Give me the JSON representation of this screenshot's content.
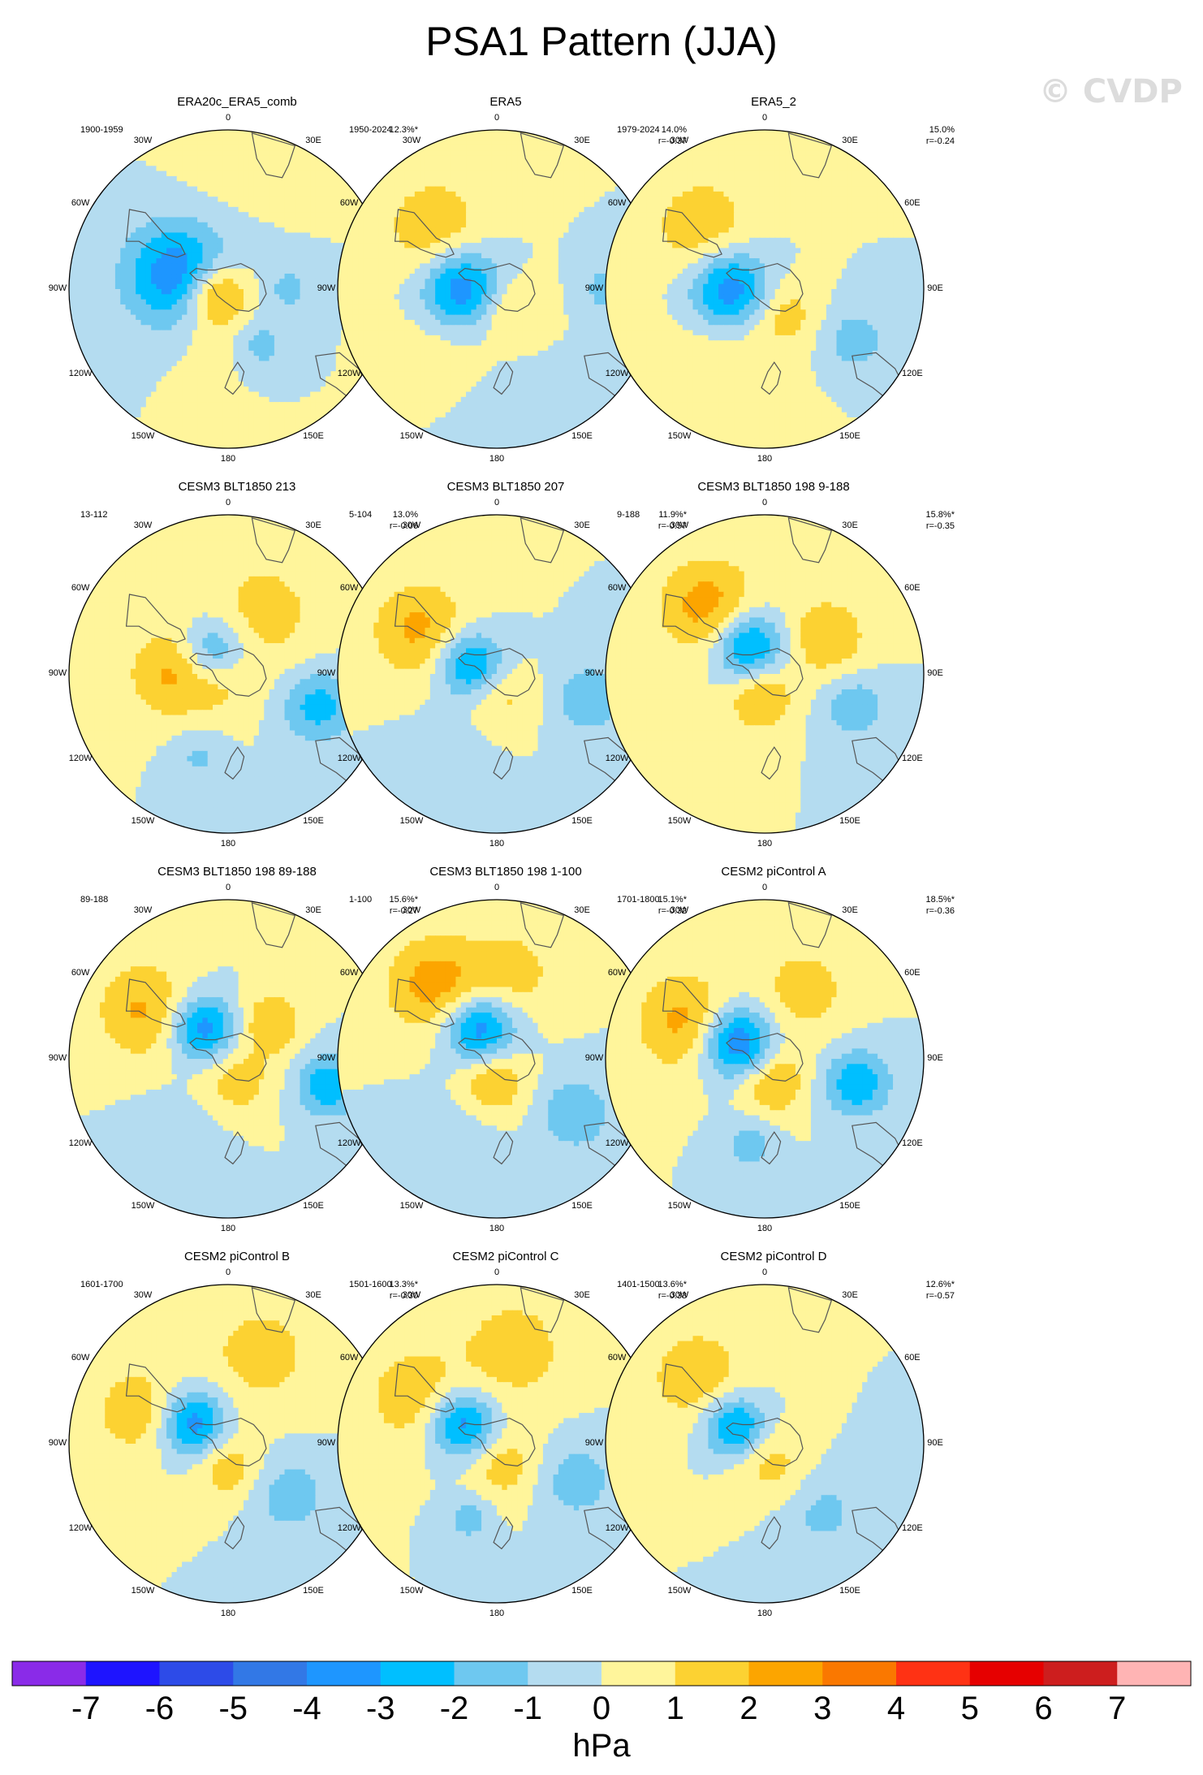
{
  "title": "PSA1 Pattern (JJA)",
  "copyright": "© CVDP",
  "unit": "hPa",
  "lon_labels": {
    "top": "0",
    "bottom": "180",
    "l30": "30W",
    "r30": "30E",
    "l60": "60W",
    "r60": "60E",
    "l90": "90W",
    "r90": "90E",
    "l120": "120W",
    "r120": "120E",
    "l150": "150W",
    "r150": "150E"
  },
  "colors": {
    "ocean_neg0": "#b4dcf0",
    "coast": "#555555"
  },
  "chart_data": {
    "type": "polar_contour_map",
    "projection": "south polar stereographic",
    "variable": "PSA1 sea level pressure anomaly (JJA)",
    "colorbar": {
      "levels": [
        "-7",
        "-6",
        "-5",
        "-4",
        "-3",
        "-2",
        "-1",
        "0",
        "1",
        "2",
        "3",
        "4",
        "5",
        "6",
        "7"
      ],
      "colors": [
        "#8a2be8",
        "#1e14ff",
        "#2d4be8",
        "#3278e6",
        "#1e96ff",
        "#00bfff",
        "#6ec8f0",
        "#b4dcf0",
        "#fff59b",
        "#fcd232",
        "#fca500",
        "#fa7800",
        "#ff3214",
        "#e60000",
        "#cd1e1e",
        "#ffb4b4"
      ]
    },
    "panels": [
      {
        "title": "ERA20c_ERA5_comb",
        "period": "1900-1959",
        "pct": "12.3%*",
        "r": "",
        "features": [
          {
            "lon": -105,
            "rad": 0.33,
            "v": -4,
            "w": 0.23
          },
          {
            "lon": -70,
            "rad": 0.09,
            "v": 3.4,
            "w": 0.14
          },
          {
            "lon": 30,
            "rad": 0.4,
            "v": -1.6,
            "w": 0.12
          },
          {
            "lon": 90,
            "rad": 0.38,
            "v": -1.4,
            "w": 0.1
          },
          {
            "lon": -15,
            "rad": 0.3,
            "v": 0.7,
            "w": 0.2
          },
          {
            "lon": 180,
            "rad": 0.75,
            "v": 0.4,
            "w": 0.22
          }
        ]
      },
      {
        "title": "ERA5",
        "period": "1950-2024",
        "pct": "14.0%",
        "r": "r=-0.37",
        "features": [
          {
            "lon": -90,
            "rad": 0.22,
            "v": -4,
            "w": 0.18
          },
          {
            "lon": -135,
            "rad": 0.55,
            "v": 1.9,
            "w": 0.22
          },
          {
            "lon": -40,
            "rad": 0.55,
            "v": 0.8,
            "w": 0.25
          },
          {
            "lon": 30,
            "rad": 0.15,
            "v": 1.5,
            "w": 0.15
          },
          {
            "lon": 90,
            "rad": 0.7,
            "v": -1.5,
            "w": 0.12
          },
          {
            "lon": 0,
            "rad": 0.75,
            "v": -0.5,
            "w": 0.3
          }
        ]
      },
      {
        "title": "ERA5_2",
        "period": "1979-2024",
        "pct": "15.0%",
        "r": "r=-0.24",
        "features": [
          {
            "lon": -90,
            "rad": 0.22,
            "v": -4,
            "w": 0.18
          },
          {
            "lon": -135,
            "rad": 0.55,
            "v": 1.9,
            "w": 0.22
          },
          {
            "lon": 60,
            "rad": 0.65,
            "v": -1.6,
            "w": 0.15
          },
          {
            "lon": -30,
            "rad": 0.55,
            "v": 0.8,
            "w": 0.3
          },
          {
            "lon": 40,
            "rad": 0.2,
            "v": 1.5,
            "w": 0.15
          }
        ]
      },
      {
        "title": "CESM3 BLT1850 213",
        "period": "13-112",
        "pct": "13.0%",
        "r": "r=-0.06",
        "features": [
          {
            "lon": -150,
            "rad": 0.18,
            "v": -2.6,
            "w": 0.14
          },
          {
            "lon": 70,
            "rad": 0.6,
            "v": -2.5,
            "w": 0.16
          },
          {
            "lon": -90,
            "rad": 0.35,
            "v": 2.2,
            "w": 0.2
          },
          {
            "lon": 150,
            "rad": 0.45,
            "v": 1.5,
            "w": 0.25
          },
          {
            "lon": -20,
            "rad": 0.55,
            "v": -1.2,
            "w": 0.12
          },
          {
            "lon": 0,
            "rad": 0.1,
            "v": 0.8,
            "w": 0.15
          }
        ]
      },
      {
        "title": "CESM3 BLT1850 207",
        "period": "5-104",
        "pct": "11.9%*",
        "r": "r=-0.57",
        "features": [
          {
            "lon": -110,
            "rad": 0.18,
            "v": -3.6,
            "w": 0.15
          },
          {
            "lon": -120,
            "rad": 0.55,
            "v": 2.3,
            "w": 0.22
          },
          {
            "lon": 75,
            "rad": 0.6,
            "v": -1.8,
            "w": 0.16
          },
          {
            "lon": 10,
            "rad": 0.15,
            "v": 1.4,
            "w": 0.15
          },
          {
            "lon": -30,
            "rad": 0.6,
            "v": -0.6,
            "w": 0.2
          }
        ]
      },
      {
        "title": "CESM3 BLT1850 198 9-188",
        "period": "9-188",
        "pct": "15.8%*",
        "r": "r=-0.35",
        "features": [
          {
            "lon": -150,
            "rad": 0.2,
            "v": -3.8,
            "w": 0.16
          },
          {
            "lon": -140,
            "rad": 0.55,
            "v": 2.6,
            "w": 0.22
          },
          {
            "lon": 70,
            "rad": 0.6,
            "v": -1.8,
            "w": 0.15
          },
          {
            "lon": -10,
            "rad": 0.15,
            "v": 2.2,
            "w": 0.15
          },
          {
            "lon": 120,
            "rad": 0.45,
            "v": 2,
            "w": 0.18
          }
        ]
      },
      {
        "title": "CESM3 BLT1850 198 89-188",
        "period": "89-188",
        "pct": "15.6%*",
        "r": "r=-0.27",
        "features": [
          {
            "lon": -140,
            "rad": 0.25,
            "v": -3.8,
            "w": 0.15
          },
          {
            "lon": -120,
            "rad": 0.6,
            "v": 2.2,
            "w": 0.22
          },
          {
            "lon": 75,
            "rad": 0.65,
            "v": -2.8,
            "w": 0.14
          },
          {
            "lon": 20,
            "rad": 0.15,
            "v": 1.6,
            "w": 0.16
          },
          {
            "lon": 130,
            "rad": 0.35,
            "v": 2,
            "w": 0.14
          },
          {
            "lon": -30,
            "rad": 0.6,
            "v": -0.8,
            "w": 0.2
          }
        ]
      },
      {
        "title": "CESM3 BLT1850 198 1-100",
        "period": "1-100",
        "pct": "15.1%*",
        "r": "r=-0.32",
        "features": [
          {
            "lon": -150,
            "rad": 0.22,
            "v": -4,
            "w": 0.16
          },
          {
            "lon": -140,
            "rad": 0.6,
            "v": 2.6,
            "w": 0.22
          },
          {
            "lon": 55,
            "rad": 0.6,
            "v": -2,
            "w": 0.16
          },
          {
            "lon": -10,
            "rad": 0.15,
            "v": 2.2,
            "w": 0.15
          },
          {
            "lon": 170,
            "rad": 0.55,
            "v": 1.5,
            "w": 0.2
          },
          {
            "lon": -30,
            "rad": 0.55,
            "v": -0.8,
            "w": 0.2
          }
        ]
      },
      {
        "title": "CESM2 piControl A",
        "period": "1701-1800",
        "pct": "18.5%*",
        "r": "r=-0.36",
        "features": [
          {
            "lon": -120,
            "rad": 0.2,
            "v": -4.5,
            "w": 0.16
          },
          {
            "lon": -115,
            "rad": 0.55,
            "v": 2.4,
            "w": 0.22
          },
          {
            "lon": 75,
            "rad": 0.6,
            "v": -2.8,
            "w": 0.15
          },
          {
            "lon": 20,
            "rad": 0.15,
            "v": 2.2,
            "w": 0.15
          },
          {
            "lon": -10,
            "rad": 0.55,
            "v": -1.6,
            "w": 0.12
          },
          {
            "lon": 150,
            "rad": 0.5,
            "v": 1.6,
            "w": 0.2
          }
        ]
      },
      {
        "title": "CESM2 piControl B",
        "period": "1601-1700",
        "pct": "13.3%*",
        "r": "r=-0.30",
        "features": [
          {
            "lon": -120,
            "rad": 0.25,
            "v": -3.8,
            "w": 0.15
          },
          {
            "lon": -110,
            "rad": 0.6,
            "v": 1.8,
            "w": 0.2
          },
          {
            "lon": 50,
            "rad": 0.5,
            "v": -1.6,
            "w": 0.18
          },
          {
            "lon": 0,
            "rad": 0.15,
            "v": 1.8,
            "w": 0.15
          },
          {
            "lon": 160,
            "rad": 0.6,
            "v": 1.5,
            "w": 0.25
          }
        ]
      },
      {
        "title": "CESM2 piControl C",
        "period": "1501-1600",
        "pct": "13.6%*",
        "r": "r=-0.33",
        "features": [
          {
            "lon": -120,
            "rad": 0.25,
            "v": -3.8,
            "w": 0.15
          },
          {
            "lon": -120,
            "rad": 0.6,
            "v": 1.8,
            "w": 0.22
          },
          {
            "lon": 65,
            "rad": 0.55,
            "v": -1.6,
            "w": 0.18
          },
          {
            "lon": 20,
            "rad": 0.15,
            "v": 1.6,
            "w": 0.16
          },
          {
            "lon": 170,
            "rad": 0.6,
            "v": 1.6,
            "w": 0.25
          },
          {
            "lon": -20,
            "rad": 0.5,
            "v": -1.6,
            "w": 0.1
          }
        ]
      },
      {
        "title": "CESM2 piControl D",
        "period": "1401-1500",
        "pct": "12.6%*",
        "r": "r=-0.57",
        "features": [
          {
            "lon": -120,
            "rad": 0.22,
            "v": -3.6,
            "w": 0.14
          },
          {
            "lon": -135,
            "rad": 0.6,
            "v": 1.8,
            "w": 0.22
          },
          {
            "lon": 40,
            "rad": 0.55,
            "v": -1.3,
            "w": 0.2
          },
          {
            "lon": 20,
            "rad": 0.15,
            "v": 1.5,
            "w": 0.18
          }
        ]
      }
    ]
  }
}
